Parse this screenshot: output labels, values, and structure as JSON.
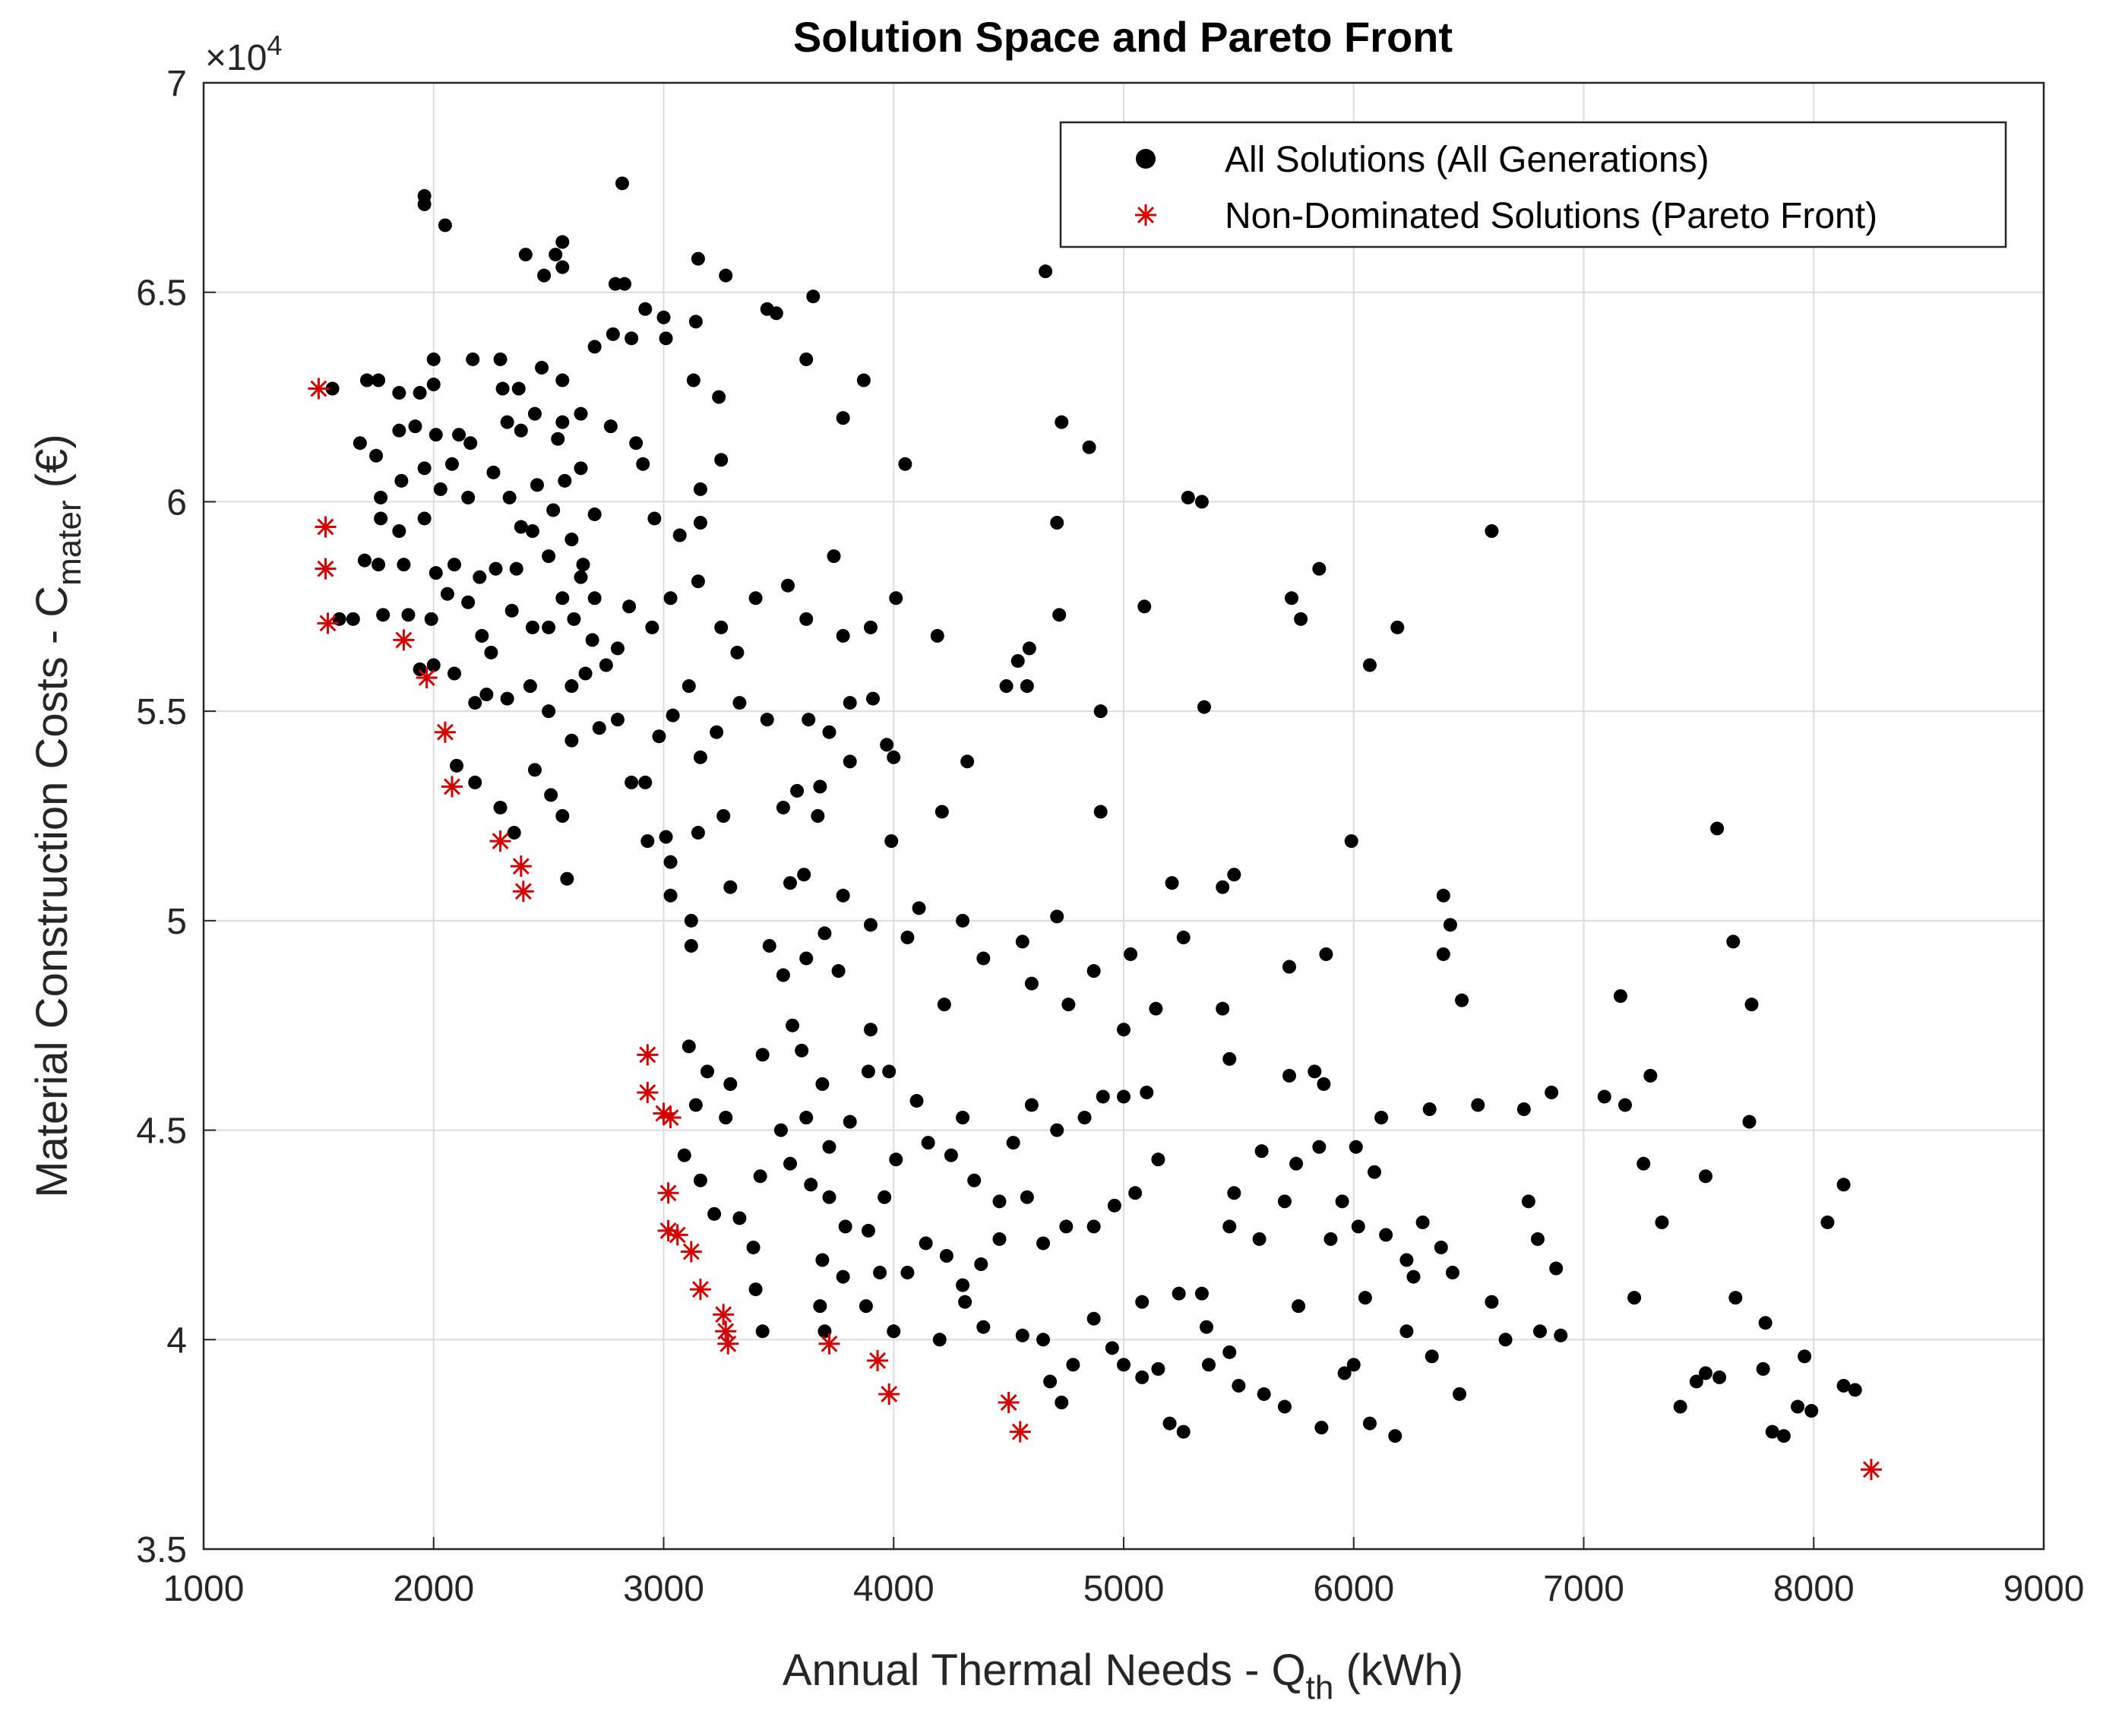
{
  "chart_data": {
    "type": "scatter",
    "title": "Solution Space and Pareto Front",
    "xlabel": {
      "text": "Annual Thermal Needs - Q",
      "sub": "th",
      "tail": " (kWh)"
    },
    "ylabel": {
      "text": "Material Construction Costs - C",
      "sub": "mater",
      "tail": " (€)"
    },
    "y_multiplier": {
      "base": "×10",
      "power": "4"
    },
    "xlim": [
      1000,
      9000
    ],
    "xticks": [
      1000,
      2000,
      3000,
      4000,
      5000,
      6000,
      7000,
      8000,
      9000
    ],
    "ylim": [
      35000,
      70000
    ],
    "yticks": [
      {
        "value": 35000,
        "label": "3.5"
      },
      {
        "value": 40000,
        "label": "4"
      },
      {
        "value": 45000,
        "label": "4.5"
      },
      {
        "value": 50000,
        "label": "5"
      },
      {
        "value": 55000,
        "label": "5.5"
      },
      {
        "value": 60000,
        "label": "6"
      },
      {
        "value": 65000,
        "label": "6.5"
      },
      {
        "value": 70000,
        "label": "7"
      }
    ],
    "grid": true,
    "legend": "upper right",
    "series": [
      {
        "name": "All Solutions (All Generations)",
        "color": "#000000",
        "marker": "circle",
        "x": [
          1960,
          1960,
          2050,
          2820,
          2400,
          2560,
          2530,
          2480,
          2560,
          2790,
          2830,
          2920,
          3000,
          3150,
          3270,
          3140,
          3450,
          3490,
          3650,
          3620,
          3870,
          3780,
          3240,
          3130,
          3010,
          2860,
          2780,
          2700,
          2560,
          2470,
          2370,
          2300,
          2290,
          2170,
          2000,
          2000,
          1940,
          1850,
          1760,
          1710,
          1560,
          1680,
          1750,
          1850,
          1920,
          2010,
          2110,
          2160,
          2080,
          1960,
          1860,
          1770,
          1770,
          1850,
          1960,
          2030,
          2150,
          2260,
          2320,
          2380,
          2440,
          2540,
          2560,
          2640,
          2640,
          2570,
          2450,
          2330,
          2380,
          2430,
          2520,
          2600,
          2700,
          2770,
          2880,
          2910,
          2960,
          3070,
          3160,
          3160,
          3250,
          4050,
          4730,
          4850,
          4710,
          5280,
          5340,
          6600,
          5850,
          5730,
          5770,
          6190,
          6070,
          5090,
          4720,
          4590,
          4540,
          4490,
          4580,
          4900,
          5350,
          4190,
          4010,
          3740,
          3780,
          3620,
          3540,
          3400,
          3320,
          3250,
          3150,
          3030,
          2950,
          2850,
          2800,
          2700,
          2640,
          2560,
          2500,
          2430,
          2340,
          2250,
          2210,
          2150,
          2060,
          1990,
          1890,
          1780,
          1650,
          1590,
          1700,
          1760,
          1870,
          2010,
          2090,
          2200,
          2270,
          2360,
          2500,
          2650,
          2610,
          2690,
          2750,
          2660,
          2600,
          2500,
          2420,
          2320,
          2230,
          2180,
          2090,
          2000,
          1940,
          2100,
          2180,
          2290,
          2350,
          2440,
          2510,
          2560,
          2580,
          2600,
          2720,
          2800,
          2860,
          2920,
          2980,
          3040,
          3110,
          3160,
          3230,
          3330,
          3450,
          3630,
          3720,
          3810,
          3910,
          3970,
          3810,
          3680,
          3580,
          3670,
          3520,
          3260,
          3150,
          3010,
          2930,
          3030,
          3030,
          3120,
          3290,
          3120,
          3550,
          3610,
          3460,
          3520,
          3620,
          3700,
          3780,
          3900,
          3990,
          4000,
          4210,
          4320,
          4110,
          4060,
          4300,
          4220,
          4390,
          4560,
          4710,
          4600,
          4760,
          4900,
          5210,
          5480,
          5430,
          5260,
          5030,
          4870,
          5000,
          5140,
          5430,
          5460,
          5880,
          5720,
          5990,
          6390,
          6420,
          6390,
          6470,
          7580,
          7650,
          7730,
          7160,
          3560,
          3600,
          3690,
          3760,
          3900,
          3890,
          3980,
          3810,
          3720,
          3620,
          3510,
          3430,
          3290,
          3190,
          3110,
          3140,
          3270,
          3090,
          3160,
          3220,
          3330,
          3390,
          3400,
          3430,
          3420,
          3550,
          3640,
          3720,
          3790,
          3890,
          3960,
          4010,
          4100,
          4150,
          4250,
          4300,
          4350,
          4460,
          4520,
          4600,
          4710,
          4830,
          4910,
          5000,
          5100,
          5150,
          5050,
          4960,
          4870,
          4750,
          4650,
          4580,
          4460,
          4380,
          4300,
          4230,
          4140,
          4060,
          3940,
          3880,
          3780,
          3690,
          3680,
          3700,
          4000,
          4200,
          4310,
          4390,
          4560,
          4650,
          4680,
          4730,
          4780,
          4870,
          4950,
          5000,
          5080,
          5150,
          5200,
          5260,
          5080,
          5240,
          5340,
          5360,
          5370,
          5460,
          5500,
          5610,
          5700,
          5860,
          5760,
          5460,
          5590,
          5480,
          5700,
          5750,
          5600,
          5850,
          5720,
          5830,
          5870,
          6010,
          6090,
          6120,
          6330,
          6540,
          6740,
          6860,
          7090,
          7180,
          7290,
          7260,
          7340,
          6760,
          6800,
          6880,
          6600,
          6660,
          6810,
          6900,
          6460,
          6340,
          6230,
          6180,
          6070,
          6000,
          5960,
          6050,
          6230,
          6300,
          6380,
          6430,
          6260,
          6140,
          6020,
          5950,
          5900,
          7220,
          7420,
          7490,
          7530,
          7590,
          7530,
          7720,
          7660,
          7790,
          7780,
          7820,
          7870,
          7930,
          7960,
          7990,
          8060,
          8130,
          8130,
          8180,
          4660,
          3900
        ],
        "values": [
          67300,
          67100,
          66600,
          67600,
          65900,
          66200,
          65900,
          65400,
          65600,
          65200,
          65200,
          64600,
          64400,
          65800,
          65400,
          64300,
          64600,
          64500,
          64900,
          63400,
          62900,
          62000,
          62500,
          62900,
          63900,
          63900,
          64000,
          63700,
          62900,
          63200,
          62700,
          62700,
          63400,
          63400,
          63400,
          62800,
          62600,
          62600,
          62900,
          62900,
          62700,
          61400,
          61100,
          61700,
          61800,
          61600,
          61600,
          61400,
          60900,
          60800,
          60500,
          60100,
          59600,
          59300,
          59600,
          60300,
          60100,
          60700,
          61900,
          61700,
          62100,
          61500,
          61900,
          62100,
          60800,
          60500,
          60400,
          60100,
          59400,
          59300,
          59800,
          59100,
          59700,
          61800,
          61400,
          60900,
          59600,
          59200,
          59500,
          60300,
          61000,
          60900,
          61900,
          61300,
          59500,
          60100,
          60000,
          59300,
          58400,
          57700,
          57200,
          57000,
          56100,
          57500,
          57300,
          56500,
          56200,
          55600,
          55600,
          55000,
          55100,
          56800,
          57700,
          58700,
          56800,
          57200,
          58000,
          57700,
          56400,
          57000,
          58100,
          57700,
          57000,
          57500,
          56500,
          57700,
          58200,
          57700,
          57000,
          57000,
          57400,
          56400,
          56800,
          57600,
          57800,
          57200,
          57300,
          57300,
          57200,
          57200,
          58600,
          58500,
          58500,
          58300,
          58500,
          58200,
          58400,
          58400,
          58700,
          58500,
          57200,
          56700,
          56100,
          55900,
          55600,
          55000,
          55600,
          55300,
          55400,
          55200,
          55900,
          56100,
          56000,
          53700,
          53300,
          52700,
          52100,
          53600,
          53000,
          52500,
          51000,
          54300,
          54600,
          54800,
          53300,
          53300,
          54400,
          54900,
          55600,
          53900,
          54500,
          55200,
          54800,
          54800,
          54500,
          55200,
          55300,
          54200,
          53800,
          53200,
          53100,
          52500,
          52700,
          52500,
          52100,
          52000,
          51900,
          51400,
          50600,
          50000,
          50800,
          49400,
          50900,
          51100,
          49400,
          48700,
          49100,
          49700,
          50600,
          49900,
          51900,
          53900,
          52600,
          53800,
          50300,
          49600,
          50000,
          48000,
          49100,
          49500,
          50100,
          48500,
          48000,
          52600,
          50900,
          51100,
          50800,
          49600,
          49200,
          48800,
          47400,
          47900,
          47900,
          46700,
          49200,
          48900,
          51900,
          50600,
          49900,
          49200,
          48100,
          52200,
          49500,
          48000,
          48200,
          47500,
          46900,
          46100,
          48800,
          47400,
          46400,
          46400,
          45200,
          44600,
          45300,
          45000,
          46800,
          46100,
          46400,
          47000,
          45600,
          45300,
          44400,
          43800,
          43000,
          42900,
          42200,
          41200,
          40200,
          43900,
          44200,
          43700,
          43400,
          42700,
          42600,
          43400,
          44300,
          45700,
          44700,
          44400,
          45300,
          43800,
          43300,
          44700,
          45600,
          45000,
          45300,
          45800,
          45800,
          45900,
          44300,
          43500,
          43200,
          42700,
          42700,
          42300,
          43400,
          42400,
          41800,
          41300,
          42000,
          42300,
          41600,
          41600,
          40800,
          41500,
          41900,
          40800,
          40200,
          40200,
          40000,
          40900,
          40300,
          40100,
          40000,
          39000,
          38500,
          39400,
          40500,
          39800,
          39400,
          39100,
          39300,
          38000,
          37800,
          40900,
          41100,
          41100,
          40300,
          39400,
          39700,
          38900,
          38700,
          38400,
          37900,
          40800,
          42700,
          42400,
          43500,
          43300,
          44200,
          44500,
          44600,
          46300,
          46400,
          46100,
          44600,
          44000,
          45300,
          45500,
          45600,
          45500,
          45900,
          45800,
          45600,
          46300,
          44200,
          42800,
          43300,
          42400,
          41700,
          40900,
          40000,
          40200,
          40100,
          38700,
          39600,
          40200,
          37700,
          38000,
          39400,
          39200,
          41000,
          41900,
          42800,
          42200,
          41600,
          41500,
          42500,
          42700,
          43300,
          42400,
          41000,
          38400,
          39000,
          39200,
          39100,
          43900,
          45200,
          41000,
          40400,
          39300,
          37800,
          37700,
          38400,
          39600,
          38300,
          42800,
          43700,
          38900,
          38800,
          65500,
          57000
        ]
      },
      {
        "name": "Non-Dominated Solutions (Pareto Front)",
        "color": "#d40000",
        "marker": "star",
        "x": [
          1500,
          1530,
          1530,
          1540,
          1870,
          1970,
          2050,
          2080,
          2290,
          2380,
          2390,
          2930,
          2930,
          3000,
          3030,
          3020,
          3020,
          3060,
          3120,
          3160,
          3260,
          3270,
          3280,
          3720,
          3930,
          3980,
          4500,
          4550,
          8250
        ],
        "values": [
          62700,
          59400,
          58400,
          57100,
          56700,
          55800,
          54500,
          53200,
          51900,
          51300,
          50700,
          46800,
          45900,
          45400,
          45300,
          43500,
          42600,
          42500,
          42100,
          41200,
          40600,
          40200,
          39900,
          39900,
          39500,
          38700,
          38500,
          37800,
          36900
        ]
      }
    ]
  }
}
